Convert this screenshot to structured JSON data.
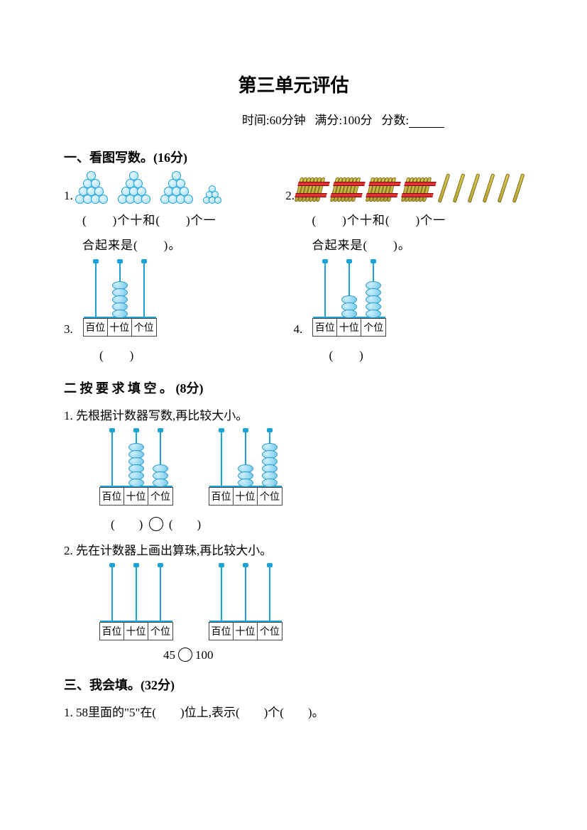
{
  "title": "第三单元评估",
  "meta": {
    "time_label": "时间:60分钟",
    "full_label": "满分:100分",
    "score_label": "分数:"
  },
  "s1": {
    "heading": "一、看图写数。(16分)",
    "q1": {
      "num": "1.",
      "pyramids": [
        4,
        4,
        4,
        3
      ],
      "line1": "(　　)个十和(　　)个一",
      "line2": "合起来是(　　)。"
    },
    "q2": {
      "num": "2.",
      "bundles": 4,
      "sticks": 6,
      "line1": "(　　)个十和(　　)个一",
      "line2": "合起来是(　　)。"
    },
    "q3": {
      "num": "3.",
      "abacus": {
        "beads": [
          0,
          5,
          0
        ],
        "labels": [
          "百位",
          "十位",
          "个位"
        ]
      },
      "ans": "(　　)"
    },
    "q4": {
      "num": "4.",
      "abacus": {
        "beads": [
          0,
          3,
          5
        ],
        "labels": [
          "百位",
          "十位",
          "个位"
        ]
      },
      "ans": "(　　)"
    }
  },
  "s2": {
    "heading": "二 按 要 求 填 空 。 (8分)",
    "q1": {
      "num": "1.",
      "text": "先根据计数器写数,再比较大小。",
      "abacusA": {
        "beads": [
          0,
          6,
          3
        ],
        "labels": [
          "百位",
          "十位",
          "个位"
        ]
      },
      "abacusB": {
        "beads": [
          0,
          3,
          6
        ],
        "labels": [
          "百位",
          "十位",
          "个位"
        ]
      },
      "ans_left": "(　　)",
      "ans_right": "(　　)"
    },
    "q2": {
      "num": "2.",
      "text": "先在计数器上画出算珠,再比较大小。",
      "abacusA": {
        "beads": [
          0,
          0,
          0
        ],
        "labels": [
          "百位",
          "十位",
          "个位"
        ]
      },
      "abacusB": {
        "beads": [
          0,
          0,
          0
        ],
        "labels": [
          "百位",
          "十位",
          "个位"
        ]
      },
      "compare_expr_left": "45",
      "compare_expr_right": "100"
    }
  },
  "s3": {
    "heading": "三、我会填。(32分)",
    "q1": {
      "num": "1.",
      "text": "58里面的\"5\"在(　　)位上,表示(　　)个(　　)。"
    }
  },
  "colors": {
    "accent": "#1aa3d9",
    "bundle_fill": "#d9c94a",
    "bundle_band": "#d33",
    "text": "#000000",
    "background": "#ffffff"
  }
}
